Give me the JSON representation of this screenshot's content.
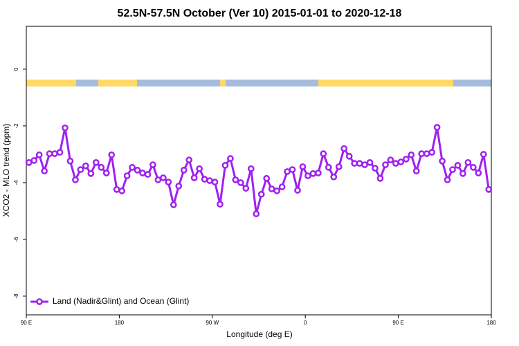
{
  "chart_data": {
    "type": "line",
    "title": "52.5N-57.5N October (Ver 10)   2015-01-01 to 2020-12-18",
    "x_label": "Longitude (deg E)",
    "y_label": "XCO2 - MLO trend (ppm)",
    "xlim": [
      90,
      540
    ],
    "xticks": [
      {
        "value": 90,
        "label": "90 E"
      },
      {
        "value": 180,
        "label": "180"
      },
      {
        "value": 270,
        "label": "90 W"
      },
      {
        "value": 360,
        "label": "0"
      },
      {
        "value": 450,
        "label": "90 E"
      },
      {
        "value": 540,
        "label": "180"
      }
    ],
    "ylim": [
      -8.66,
      1.51
    ],
    "yticks": [
      0,
      -2,
      -4,
      -6,
      -8
    ],
    "legend": "lower left",
    "x": [
      92.5,
      97.5,
      102.5,
      107.5,
      112.5,
      117.5,
      122.5,
      127.5,
      132.5,
      137.5,
      142.5,
      147.5,
      152.5,
      157.5,
      162.5,
      167.5,
      172.5,
      177.5,
      182.5,
      187.5,
      192.5,
      197.5,
      202.5,
      207.5,
      212.5,
      217.5,
      222.5,
      227.5,
      232.5,
      237.5,
      242.5,
      247.5,
      252.5,
      257.5,
      262.5,
      267.5,
      272.5,
      277.5,
      282.5,
      287.5,
      292.5,
      297.5,
      302.5,
      307.5,
      312.5,
      317.5,
      322.5,
      327.5,
      332.5,
      337.5,
      342.5,
      347.5,
      352.5,
      357.5,
      362.5,
      367.5,
      372.5,
      377.5,
      382.5,
      387.5,
      392.5,
      397.5,
      402.5,
      407.5,
      412.5,
      417.5,
      422.5,
      427.5,
      432.5,
      437.5,
      442.5,
      447.5,
      452.5,
      457.5,
      462.5,
      467.5,
      472.5,
      477.5,
      482.5,
      487.5,
      492.5,
      497.5,
      502.5,
      507.5,
      512.5,
      517.5,
      522.5,
      527.5,
      532.5,
      537.5
    ],
    "series": [
      {
        "name": "Land (Nadir&Glint) and Ocean (Glint)",
        "color": "#a020f0",
        "values": [
          -3.29,
          -3.22,
          -3.02,
          -3.59,
          -2.98,
          -2.98,
          -2.93,
          -2.07,
          -3.24,
          -3.9,
          -3.54,
          -3.41,
          -3.68,
          -3.29,
          -3.46,
          -3.66,
          -3.02,
          -4.24,
          -4.29,
          -3.76,
          -3.46,
          -3.56,
          -3.66,
          -3.71,
          -3.37,
          -3.9,
          -3.83,
          -3.98,
          -4.78,
          -4.12,
          -3.56,
          -3.2,
          -3.83,
          -3.51,
          -3.88,
          -3.93,
          -3.98,
          -4.76,
          -3.39,
          -3.15,
          -3.9,
          -4.0,
          -4.2,
          -3.51,
          -5.1,
          -4.41,
          -3.85,
          -4.22,
          -4.29,
          -4.15,
          -3.61,
          -3.54,
          -4.27,
          -3.44,
          -3.76,
          -3.68,
          -3.66,
          -2.98,
          -3.46,
          -3.8,
          -3.44,
          -2.8,
          -3.07,
          -3.32,
          -3.32,
          -3.37,
          -3.29,
          -3.49,
          -3.85,
          -3.37,
          -3.2,
          -3.32,
          -3.27,
          -3.17,
          -3.02,
          -3.59,
          -2.98,
          -2.98,
          -2.93,
          -2.05,
          -3.24,
          -3.9,
          -3.54,
          -3.39,
          -3.68,
          -3.29,
          -3.46,
          -3.66,
          -3.0,
          -4.24
        ]
      }
    ]
  }
}
